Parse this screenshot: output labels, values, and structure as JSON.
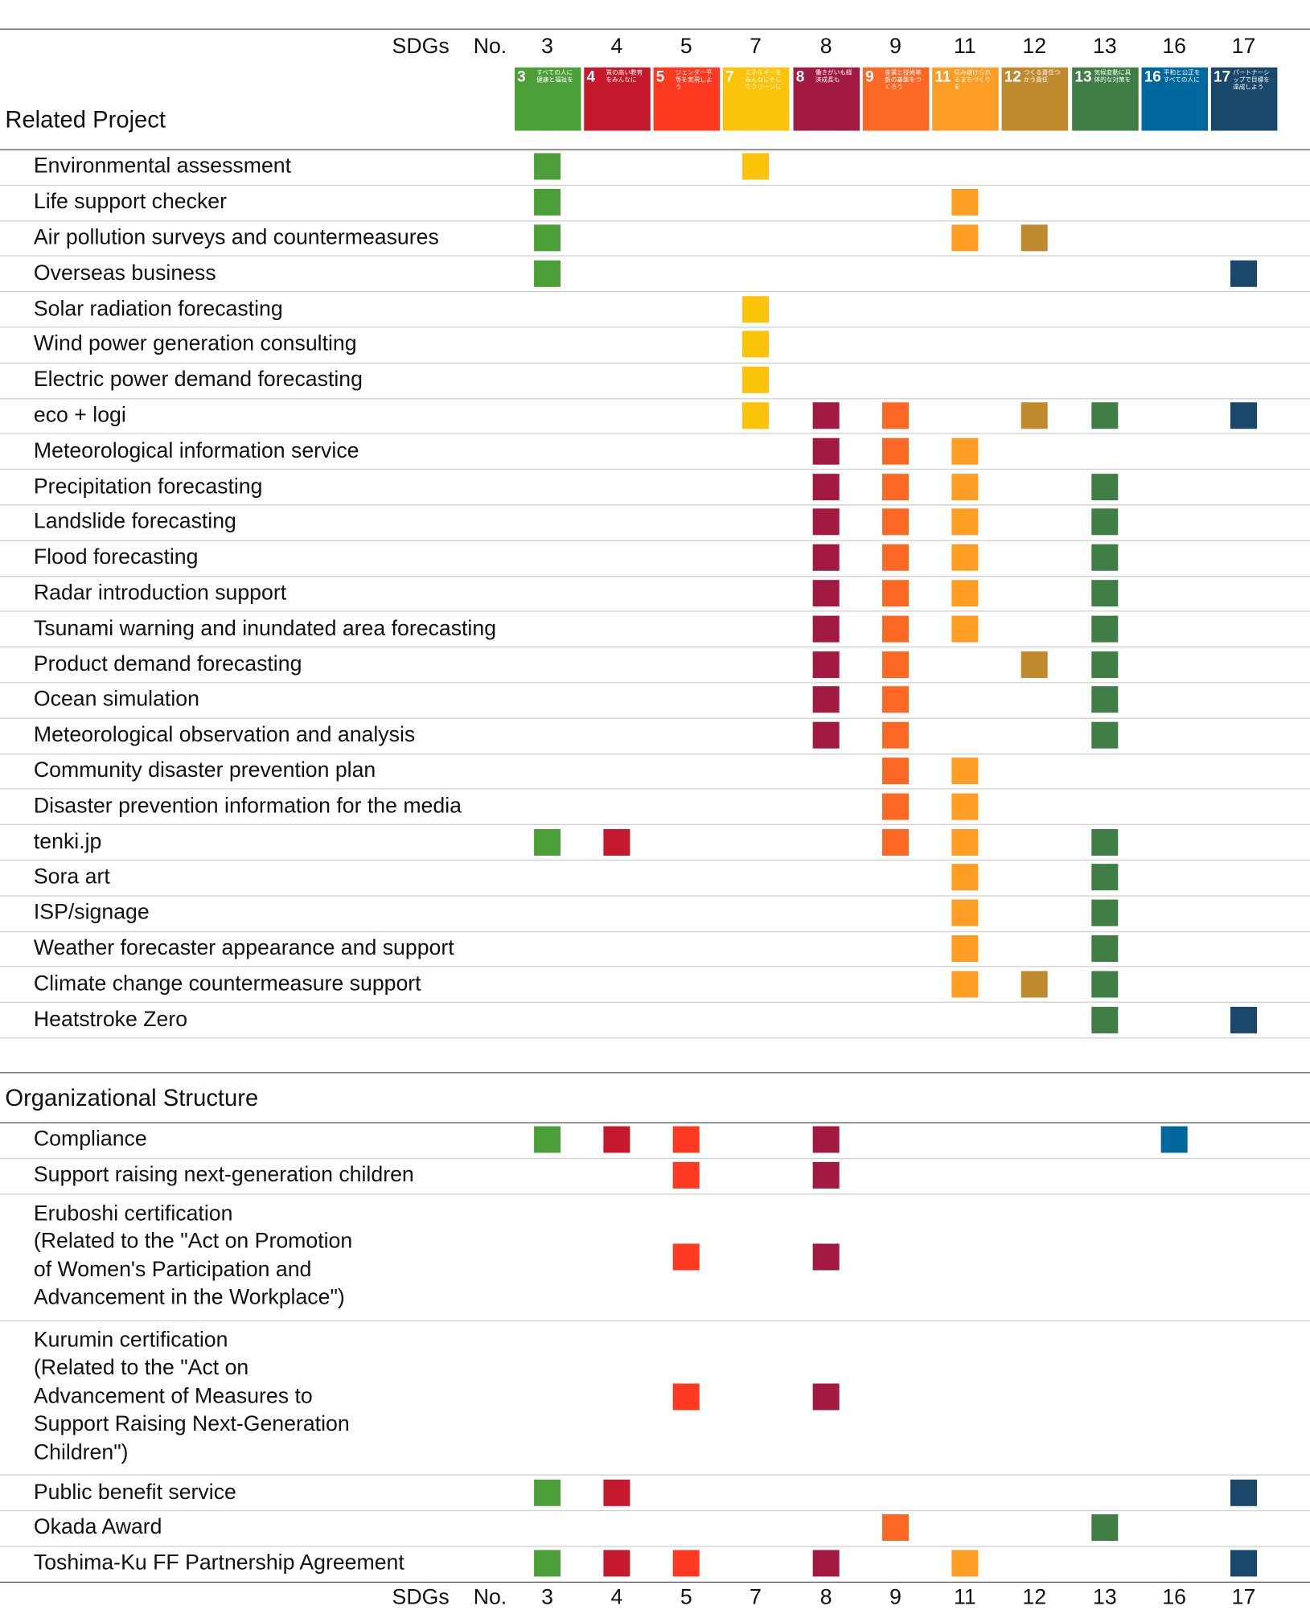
{
  "header": {
    "sdgs_label": "SDGs",
    "no_label": "No."
  },
  "goals": [
    {
      "number": 3,
      "color": "#4c9f38",
      "title": "すべての人に健康と福祉を"
    },
    {
      "number": 4,
      "color": "#c5192d",
      "title": "質の高い教育をみんなに"
    },
    {
      "number": 5,
      "color": "#ff3a21",
      "title": "ジェンダー平等を実現しよう"
    },
    {
      "number": 7,
      "color": "#fcc30b",
      "title": "エネルギーをみんなにそしてクリーンに"
    },
    {
      "number": 8,
      "color": "#a21942",
      "title": "働きがいも経済成長も"
    },
    {
      "number": 9,
      "color": "#fd6925",
      "title": "産業と技術革新の基盤をつくろう"
    },
    {
      "number": 11,
      "color": "#fd9d24",
      "title": "住み続けられるまちづくりを"
    },
    {
      "number": 12,
      "color": "#bf8b2e",
      "title": "つくる責任つかう責任"
    },
    {
      "number": 13,
      "color": "#3f7e44",
      "title": "気候変動に具体的な対策を"
    },
    {
      "number": 16,
      "color": "#00689d",
      "title": "平和と公正をすべての人に"
    },
    {
      "number": 17,
      "color": "#19486a",
      "title": "パートナーシップで目標を達成しよう"
    }
  ],
  "sections": [
    {
      "title": "Related Project",
      "rows": [
        {
          "label": "Environmental assessment",
          "sdgs": [
            3,
            7
          ]
        },
        {
          "label": "Life support checker",
          "sdgs": [
            3,
            11
          ]
        },
        {
          "label": "Air pollution surveys and countermeasures",
          "sdgs": [
            3,
            11,
            12
          ]
        },
        {
          "label": "Overseas business",
          "sdgs": [
            3,
            17
          ]
        },
        {
          "label": "Solar radiation forecasting",
          "sdgs": [
            7
          ]
        },
        {
          "label": "Wind power generation consulting",
          "sdgs": [
            7
          ]
        },
        {
          "label": "Electric power demand forecasting",
          "sdgs": [
            7
          ]
        },
        {
          "label": "eco + logi",
          "sdgs": [
            7,
            8,
            9,
            12,
            13,
            17
          ]
        },
        {
          "label": "Meteorological information service",
          "sdgs": [
            8,
            9,
            11
          ]
        },
        {
          "label": "Precipitation forecasting",
          "sdgs": [
            8,
            9,
            11,
            13
          ]
        },
        {
          "label": "Landslide forecasting",
          "sdgs": [
            8,
            9,
            11,
            13
          ]
        },
        {
          "label": "Flood forecasting",
          "sdgs": [
            8,
            9,
            11,
            13
          ]
        },
        {
          "label": "Radar introduction support",
          "sdgs": [
            8,
            9,
            11,
            13
          ]
        },
        {
          "label": "Tsunami warning and inundated area forecasting",
          "sdgs": [
            8,
            9,
            11,
            13
          ]
        },
        {
          "label": "Product demand forecasting",
          "sdgs": [
            8,
            9,
            12,
            13
          ]
        },
        {
          "label": "Ocean simulation",
          "sdgs": [
            8,
            9,
            13
          ]
        },
        {
          "label": "Meteorological observation and analysis",
          "sdgs": [
            8,
            9,
            13
          ]
        },
        {
          "label": "Community disaster prevention plan",
          "sdgs": [
            9,
            11
          ]
        },
        {
          "label": "Disaster prevention information for the media",
          "sdgs": [
            9,
            11
          ]
        },
        {
          "label": "tenki.jp",
          "sdgs": [
            3,
            4,
            9,
            11,
            13
          ]
        },
        {
          "label": "Sora art",
          "sdgs": [
            11,
            13
          ]
        },
        {
          "label": "ISP/signage",
          "sdgs": [
            11,
            13
          ]
        },
        {
          "label": "Weather forecaster appearance and support",
          "sdgs": [
            11,
            13
          ]
        },
        {
          "label": "Climate change countermeasure support",
          "sdgs": [
            11,
            12,
            13
          ]
        },
        {
          "label": "Heatstroke Zero",
          "sdgs": [
            13,
            17
          ]
        }
      ]
    },
    {
      "title": "Organizational Structure",
      "rows": [
        {
          "label": "Compliance",
          "sdgs": [
            3,
            4,
            5,
            8,
            16
          ]
        },
        {
          "label": "Support raising next-generation children",
          "sdgs": [
            5,
            8
          ]
        },
        {
          "label": [
            "Eruboshi certification",
            "(Related to the \"Act on Promotion",
            "of Women's Participation and",
            "Advancement in the Workplace\")"
          ],
          "sdgs": [
            5,
            8
          ]
        },
        {
          "label": [
            "Kurumin certification",
            "(Related to the \"Act on",
            "Advancement of Measures to",
            "Support Raising Next-Generation",
            "Children\")"
          ],
          "sdgs": [
            5,
            8
          ]
        },
        {
          "label": "Public benefit service",
          "sdgs": [
            3,
            4,
            17
          ]
        },
        {
          "label": "Okada Award",
          "sdgs": [
            9,
            13
          ]
        },
        {
          "label": "Toshima-Ku FF Partnership Agreement",
          "sdgs": [
            3,
            4,
            5,
            8,
            11,
            17
          ]
        }
      ]
    }
  ]
}
